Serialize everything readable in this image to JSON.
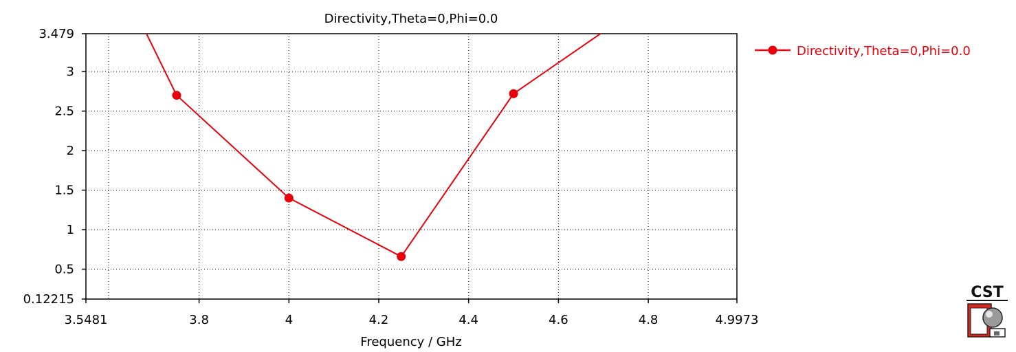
{
  "chart_data": {
    "type": "line",
    "title": "Directivity,Theta=0,Phi=0.0",
    "xlabel": "Frequency / GHz",
    "ylabel": "",
    "xlim": [
      3.5481,
      4.9973
    ],
    "ylim": [
      0.12215,
      3.479
    ],
    "x_ticks": [
      "3.5481",
      "3.8",
      "4",
      "4.2",
      "4.4",
      "4.6",
      "4.8",
      "4.9973"
    ],
    "y_ticks": [
      "3.479",
      "3",
      "2.5",
      "2",
      "1.5",
      "1",
      "0.5",
      "0.12215"
    ],
    "x_tick_values": [
      3.5481,
      3.8,
      4.0,
      4.2,
      4.4,
      4.6,
      4.8,
      4.9973
    ],
    "y_tick_values": [
      3.479,
      3.0,
      2.5,
      2.0,
      1.5,
      1.0,
      0.5,
      0.12215
    ],
    "grid": true,
    "legend_position": "right",
    "series": [
      {
        "name": "Directivity,Theta=0,Phi=0.0",
        "color": "#e8000b",
        "x": [
          3.5,
          3.75,
          4.0,
          4.25,
          4.5,
          4.75
        ],
        "y": [
          5.6,
          2.7,
          1.4,
          0.66,
          2.72,
          3.7
        ],
        "markers": [
          false,
          true,
          true,
          true,
          true,
          false
        ]
      }
    ]
  },
  "logo": {
    "text": "CST"
  }
}
